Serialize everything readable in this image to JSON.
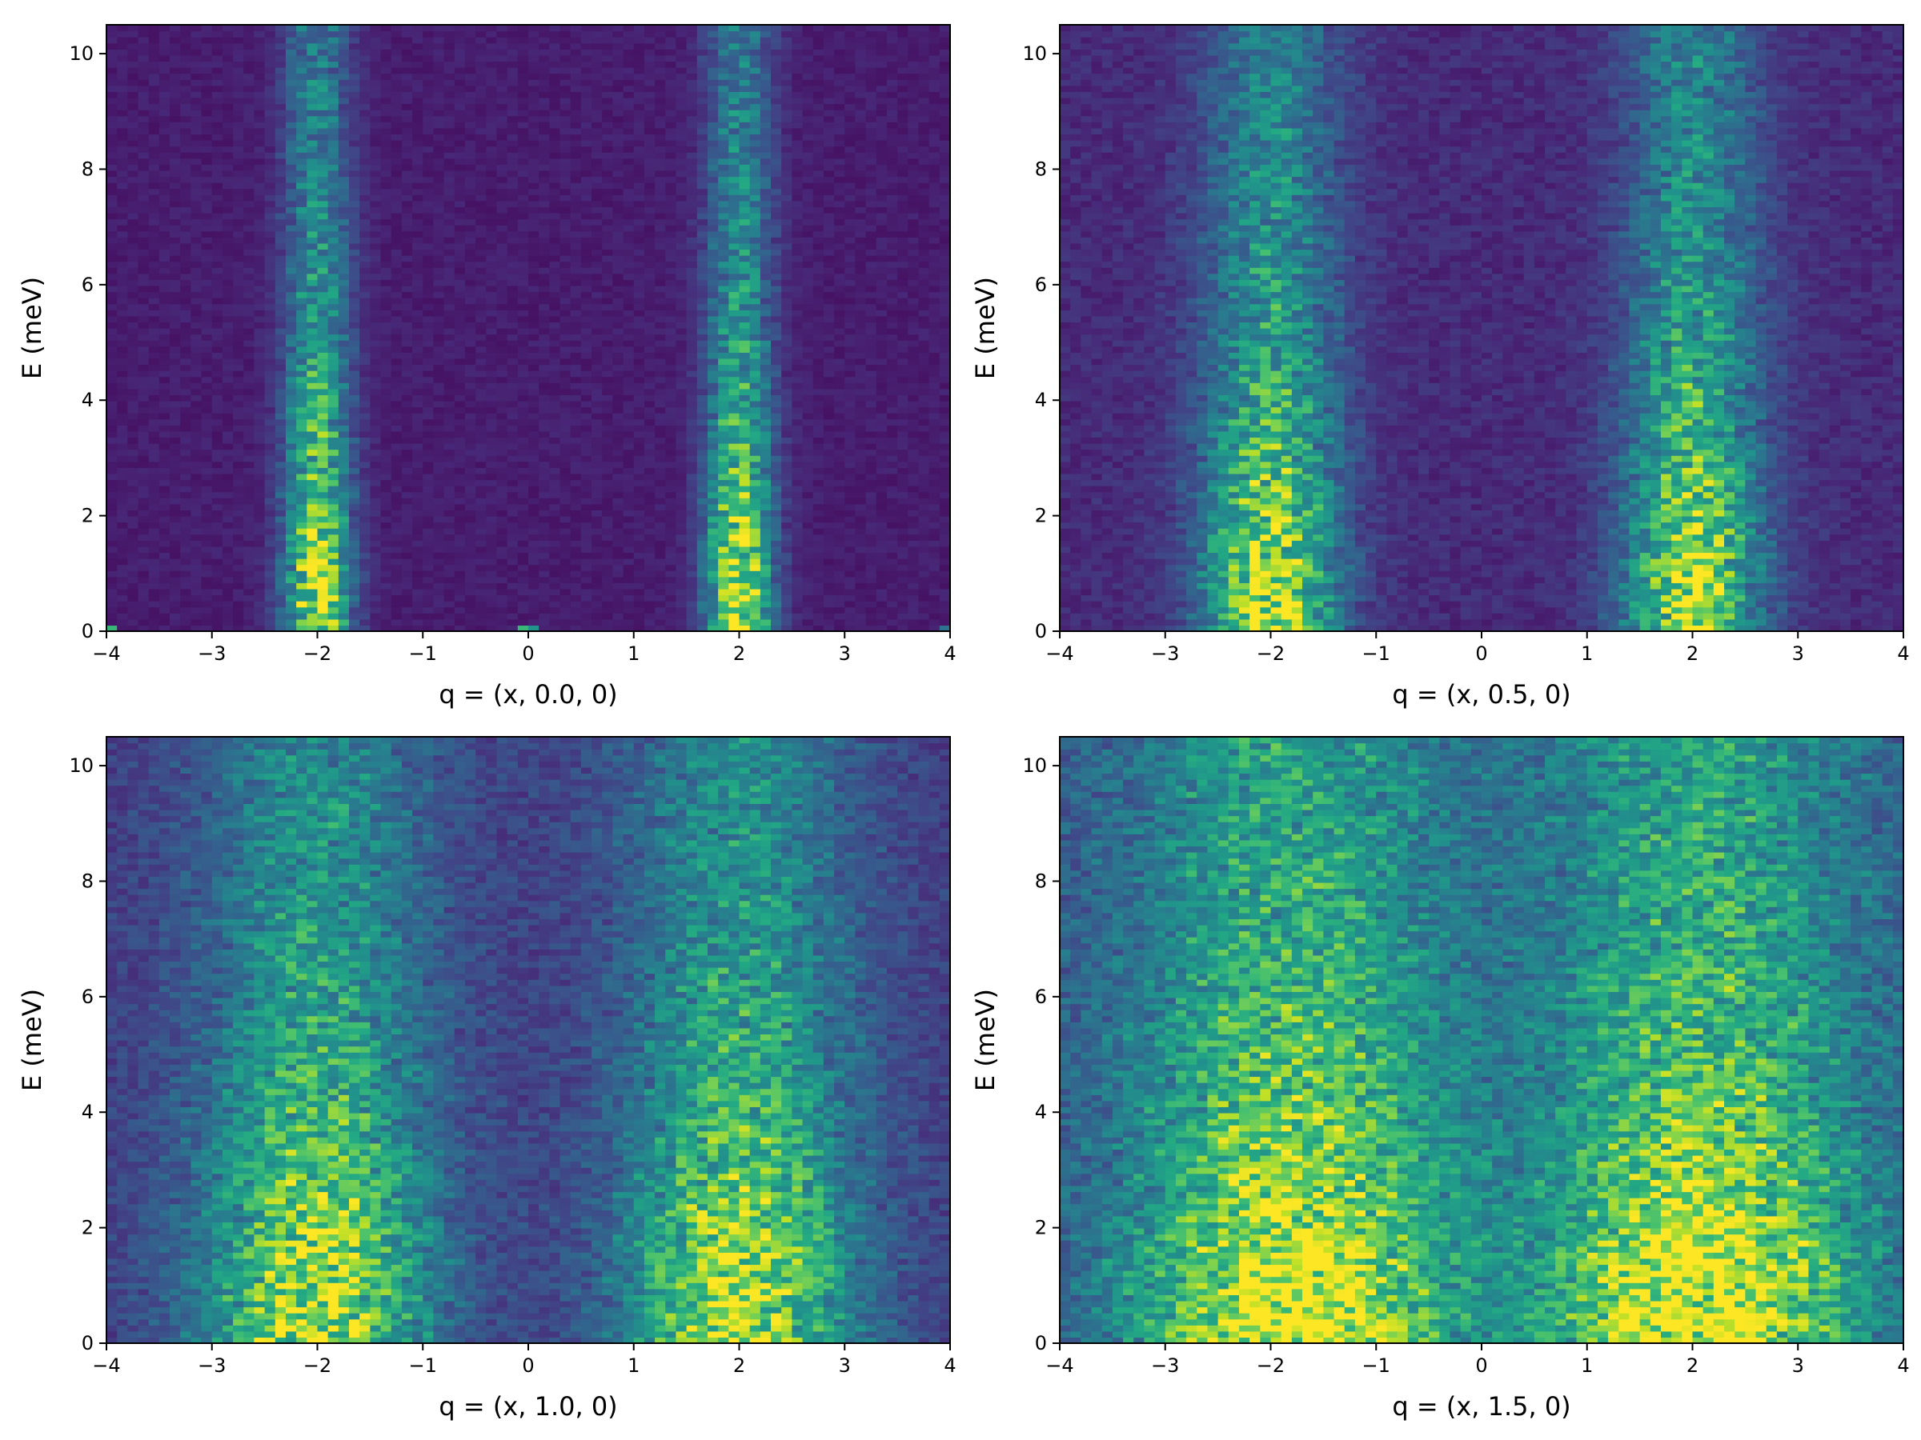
{
  "chart_data": [
    {
      "type": "heatmap",
      "xlabel": "q = (x, 0.0, 0)",
      "ylabel": "E (meV)",
      "xlim": [
        -4,
        4
      ],
      "ylim": [
        0,
        10.5
      ],
      "x_ticks": [
        -4,
        -3,
        -2,
        -1,
        0,
        1,
        2,
        3,
        4
      ],
      "y_ticks": [
        0,
        2,
        4,
        6,
        8,
        10
      ],
      "x_tick_labels": [
        "−4",
        "−3",
        "−2",
        "−1",
        "0",
        "1",
        "2",
        "3",
        "4"
      ],
      "y_tick_labels": [
        "0",
        "2",
        "4",
        "6",
        "8",
        "10"
      ],
      "colormap": "viridis",
      "bins": {
        "x": 80,
        "y": 100
      },
      "features": [
        {
          "q": -2.0,
          "width": 0.22,
          "e_max": 10.5,
          "peak_e": 1.0,
          "amplitude": 1.0
        },
        {
          "q": 2.0,
          "width": 0.22,
          "e_max": 10.5,
          "peak_e": 1.0,
          "amplitude": 1.0
        },
        {
          "q": 0.0,
          "width": 0.05,
          "e_max": 0.15,
          "peak_e": 0.0,
          "amplitude": 1.0
        },
        {
          "q": -4.0,
          "width": 0.05,
          "e_max": 0.15,
          "peak_e": 0.0,
          "amplitude": 1.0
        },
        {
          "q": 4.0,
          "width": 0.05,
          "e_max": 0.15,
          "peak_e": 0.0,
          "amplitude": 1.0
        }
      ],
      "background": 0.08,
      "seed": 11
    },
    {
      "type": "heatmap",
      "xlabel": "q = (x, 0.5, 0)",
      "ylabel": "E (meV)",
      "xlim": [
        -4,
        4
      ],
      "ylim": [
        0,
        10.5
      ],
      "x_ticks": [
        -4,
        -3,
        -2,
        -1,
        0,
        1,
        2,
        3,
        4
      ],
      "y_ticks": [
        0,
        2,
        4,
        6,
        8,
        10
      ],
      "x_tick_labels": [
        "−4",
        "−3",
        "−2",
        "−1",
        "0",
        "1",
        "2",
        "3",
        "4"
      ],
      "y_tick_labels": [
        "0",
        "2",
        "4",
        "6",
        "8",
        "10"
      ],
      "colormap": "viridis",
      "bins": {
        "x": 80,
        "y": 100
      },
      "features": [
        {
          "q": -2.0,
          "width": 0.45,
          "e_max": 10.5,
          "peak_e": 1.5,
          "amplitude": 0.9
        },
        {
          "q": 2.0,
          "width": 0.45,
          "e_max": 10.5,
          "peak_e": 1.5,
          "amplitude": 0.9
        }
      ],
      "background": 0.12,
      "seed": 23
    },
    {
      "type": "heatmap",
      "xlabel": "q = (x, 1.0, 0)",
      "ylabel": "E (meV)",
      "xlim": [
        -4,
        4
      ],
      "ylim": [
        0,
        10.5
      ],
      "x_ticks": [
        -4,
        -3,
        -2,
        -1,
        0,
        1,
        2,
        3,
        4
      ],
      "y_ticks": [
        0,
        2,
        4,
        6,
        8,
        10
      ],
      "x_tick_labels": [
        "−4",
        "−3",
        "−2",
        "−1",
        "0",
        "1",
        "2",
        "3",
        "4"
      ],
      "y_tick_labels": [
        "0",
        "2",
        "4",
        "6",
        "8",
        "10"
      ],
      "colormap": "viridis",
      "bins": {
        "x": 80,
        "y": 100
      },
      "features": [
        {
          "q": -2.0,
          "width": 0.75,
          "e_max": 10.5,
          "peak_e": 1.5,
          "amplitude": 0.85
        },
        {
          "q": 2.0,
          "width": 0.75,
          "e_max": 10.5,
          "peak_e": 1.5,
          "amplitude": 0.85
        }
      ],
      "background": 0.18,
      "seed": 37
    },
    {
      "type": "heatmap",
      "xlabel": "q = (x, 1.5, 0)",
      "ylabel": "E (meV)",
      "xlim": [
        -4,
        4
      ],
      "ylim": [
        0,
        10.5
      ],
      "x_ticks": [
        -4,
        -3,
        -2,
        -1,
        0,
        1,
        2,
        3,
        4
      ],
      "y_ticks": [
        0,
        2,
        4,
        6,
        8,
        10
      ],
      "x_tick_labels": [
        "−4",
        "−3",
        "−2",
        "−1",
        "0",
        "1",
        "2",
        "3",
        "4"
      ],
      "y_tick_labels": [
        "0",
        "2",
        "4",
        "6",
        "8",
        "10"
      ],
      "colormap": "viridis",
      "bins": {
        "x": 80,
        "y": 100
      },
      "features": [
        {
          "q": -1.8,
          "width": 1.05,
          "e_max": 10.5,
          "peak_e": 1.2,
          "amplitude": 0.9
        },
        {
          "q": 2.1,
          "width": 1.05,
          "e_max": 10.5,
          "peak_e": 1.2,
          "amplitude": 0.9
        }
      ],
      "background": 0.26,
      "seed": 53
    }
  ]
}
